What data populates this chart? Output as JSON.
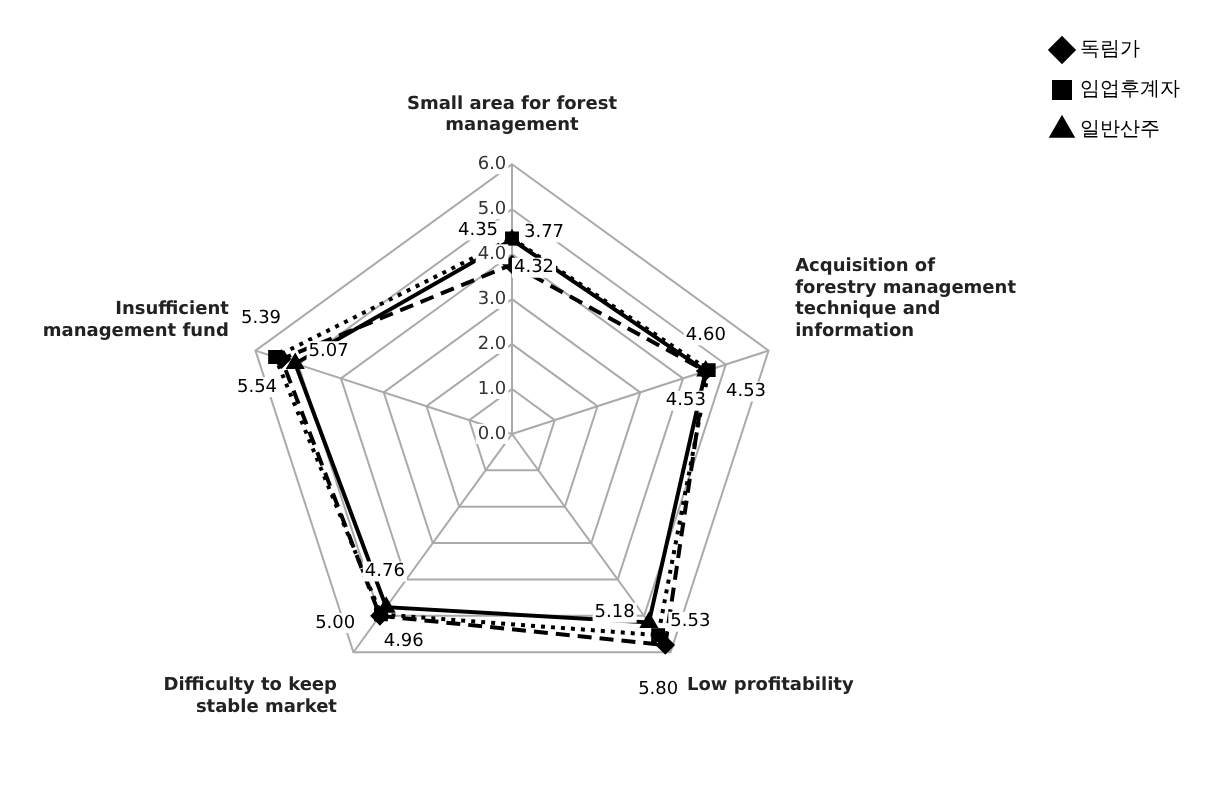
{
  "chart_data": {
    "type": "radar",
    "categories": [
      "Small area for forest management",
      "Acquisition of forestry management technique and information",
      "Low profitability",
      "Difficulty to keep stable market",
      "Insufficient management fund"
    ],
    "series": [
      {
        "name": "독림가",
        "color": "#000000",
        "line_style": "dashed",
        "marker": "diamond",
        "values": [
          3.77,
          4.53,
          5.8,
          5.0,
          5.39
        ],
        "value_labels": [
          "3.77",
          "4.53",
          "5.80",
          "5.00",
          "5.39"
        ]
      },
      {
        "name": "임업후계자",
        "color": "#000000",
        "line_style": "dotted",
        "marker": "square",
        "values": [
          4.35,
          4.6,
          5.53,
          4.96,
          5.54
        ],
        "value_labels": [
          "4.35",
          "4.60",
          "5.53",
          "4.96",
          "5.54"
        ]
      },
      {
        "name": "일반산주",
        "color": "#000000",
        "line_style": "solid",
        "marker": "triangle",
        "values": [
          4.32,
          4.53,
          5.18,
          4.76,
          5.07
        ],
        "value_labels": [
          "4.32",
          "4.53",
          "5.18",
          "4.76",
          "5.07"
        ]
      }
    ],
    "ylim": [
      0,
      6
    ],
    "yticks": [
      {
        "value": 0,
        "label": "0.0"
      },
      {
        "value": 1,
        "label": "1.0"
      },
      {
        "value": 2,
        "label": "2.0"
      },
      {
        "value": 3,
        "label": "3.0"
      },
      {
        "value": 4,
        "label": "4.0"
      },
      {
        "value": 5,
        "label": "5.0"
      },
      {
        "value": 6,
        "label": "6.0"
      }
    ],
    "grid": true,
    "legend": "top right"
  }
}
